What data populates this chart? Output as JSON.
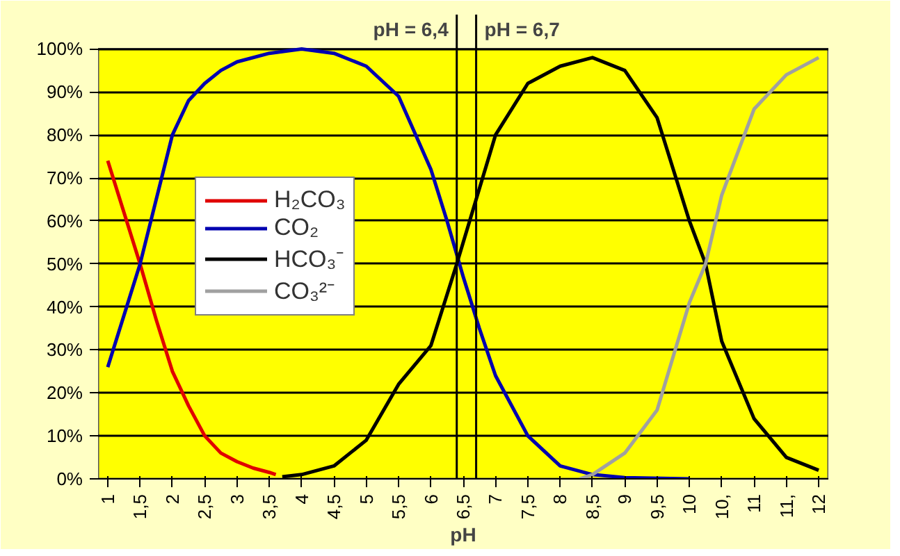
{
  "chart_data": {
    "type": "line",
    "xlabel": "pH",
    "xlim": [
      0.85,
      12.15
    ],
    "ylim": [
      0,
      100
    ],
    "xticks": [
      1,
      {
        "value": 1.5,
        "label": "1,5"
      },
      2,
      {
        "value": 2.5,
        "label": "2,5"
      },
      3,
      {
        "value": 3.5,
        "label": "3,5"
      },
      4,
      {
        "value": 4.5,
        "label": "4,5"
      },
      5,
      {
        "value": 5.5,
        "label": "5,5"
      },
      6,
      {
        "value": 6.5,
        "label": "6,5"
      },
      7,
      {
        "value": 7.5,
        "label": "7,5"
      },
      8,
      {
        "value": 8.5,
        "label": "8,5"
      },
      9,
      {
        "value": 9.5,
        "label": "9,5"
      },
      10,
      {
        "value": 10.5,
        "label": "10,"
      },
      11,
      {
        "value": 11.5,
        "label": "11,"
      },
      12
    ],
    "yticks": [
      {
        "value": 0,
        "label": "0%"
      },
      {
        "value": 10,
        "label": "10%"
      },
      {
        "value": 20,
        "label": "20%"
      },
      {
        "value": 30,
        "label": "30%"
      },
      {
        "value": 40,
        "label": "40%"
      },
      {
        "value": 50,
        "label": "50%"
      },
      {
        "value": 60,
        "label": "60%"
      },
      {
        "value": 70,
        "label": "70%"
      },
      {
        "value": 80,
        "label": "80%"
      },
      {
        "value": 90,
        "label": "90%"
      },
      {
        "value": 100,
        "label": "100%"
      }
    ],
    "grid": "y",
    "legend": "left",
    "marker": "none",
    "line_style": "solid",
    "ref_lines": [
      {
        "axis": "x",
        "value": 6.4,
        "label": "pH = 6,4",
        "color": "#000000"
      },
      {
        "axis": "x",
        "value": 6.7,
        "label": "pH = 6,7",
        "color": "#000000"
      }
    ],
    "series": [
      {
        "name": "H₂CO₃",
        "color": "#e00000",
        "x": [
          1,
          1.25,
          1.5,
          1.75,
          2,
          2.25,
          2.5,
          2.75,
          3,
          3.25,
          3.5,
          3.6
        ],
        "values": [
          74,
          62,
          50,
          37,
          25,
          17,
          10,
          6,
          4,
          2.5,
          1.5,
          1
        ]
      },
      {
        "name": "CO₂",
        "color": "#0000b0",
        "x": [
          1,
          1.25,
          1.5,
          1.75,
          2,
          2.25,
          2.5,
          2.75,
          3,
          3.5,
          4,
          4.5,
          5,
          5.5,
          6,
          6.25,
          6.5,
          6.75,
          7,
          7.5,
          8,
          8.5,
          9,
          10
        ],
        "values": [
          26,
          38,
          50,
          65,
          80,
          88,
          92,
          95,
          97,
          99,
          100,
          99,
          96,
          89,
          72,
          60,
          47,
          35,
          24,
          10,
          3,
          1,
          0.3,
          0
        ]
      },
      {
        "name": "HCO₃⁻",
        "color": "#000000",
        "x": [
          3.7,
          4,
          4.5,
          5,
          5.5,
          6,
          6.4,
          6.5,
          7,
          7.5,
          8,
          8.5,
          9,
          9.5,
          10,
          10.25,
          10.5,
          11,
          11.5,
          12
        ],
        "values": [
          0.5,
          1,
          3,
          9,
          22,
          31,
          50,
          55,
          80,
          92,
          96,
          98,
          95,
          84,
          60,
          50,
          32,
          14,
          5,
          2
        ]
      },
      {
        "name": "CO₃²⁻",
        "color": "#a0a0a0",
        "x": [
          8.3,
          8.5,
          9,
          9.5,
          10,
          10.25,
          10.5,
          11,
          11.5,
          12
        ],
        "values": [
          0,
          1,
          6,
          16,
          41,
          50,
          66,
          86,
          94,
          98
        ]
      }
    ]
  }
}
